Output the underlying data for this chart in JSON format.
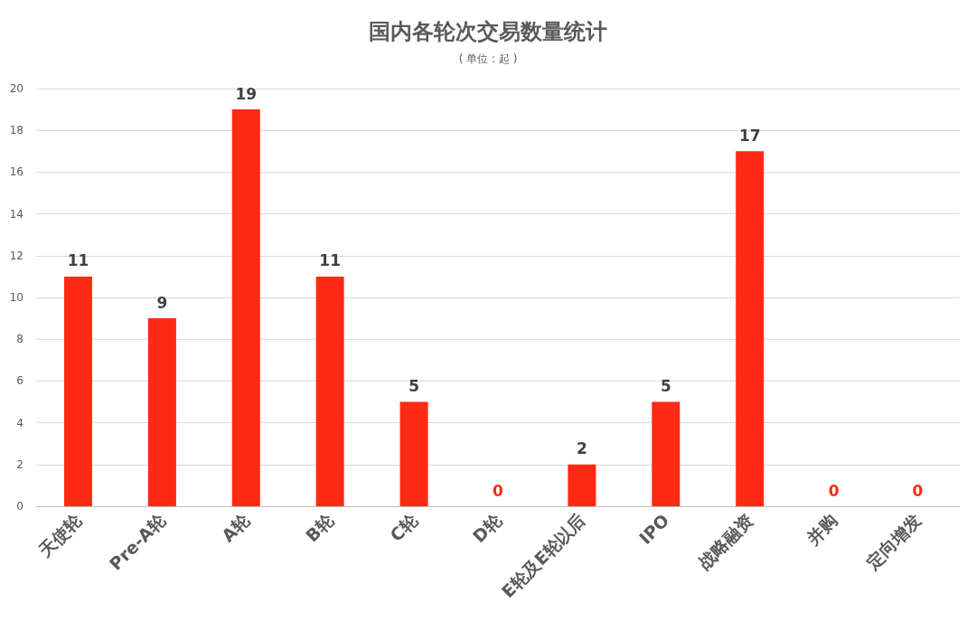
{
  "chart_data": {
    "type": "bar",
    "title": "国内各轮次交易数量统计",
    "subtitle": "( 单位 : 起 )",
    "categories": [
      "天使轮",
      "Pre-A轮",
      "A轮",
      "B轮",
      "C轮",
      "D轮",
      "E轮及E轮以后",
      "IPO",
      "战略融资",
      "并购",
      "定向增发"
    ],
    "values": [
      11,
      9,
      19,
      11,
      5,
      0,
      2,
      5,
      17,
      0,
      0
    ],
    "color": "#ff2a14",
    "ylim": [
      0,
      20
    ],
    "yticks": [
      0,
      2,
      4,
      6,
      8,
      10,
      12,
      14,
      16,
      18,
      20
    ],
    "grid": "y",
    "data_labels": true
  }
}
